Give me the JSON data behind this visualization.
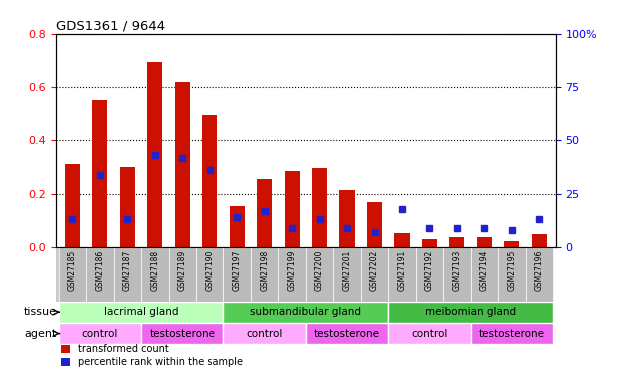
{
  "title": "GDS1361 / 9644",
  "samples": [
    "GSM27185",
    "GSM27186",
    "GSM27187",
    "GSM27188",
    "GSM27189",
    "GSM27190",
    "GSM27197",
    "GSM27198",
    "GSM27199",
    "GSM27200",
    "GSM27201",
    "GSM27202",
    "GSM27191",
    "GSM27192",
    "GSM27193",
    "GSM27194",
    "GSM27195",
    "GSM27196"
  ],
  "red_values": [
    0.31,
    0.55,
    0.3,
    0.695,
    0.62,
    0.495,
    0.155,
    0.255,
    0.285,
    0.295,
    0.215,
    0.17,
    0.055,
    0.03,
    0.04,
    0.04,
    0.025,
    0.05
  ],
  "blue_pct": [
    13,
    34,
    13,
    43,
    42,
    36,
    14,
    17,
    9,
    13,
    9,
    7,
    18,
    9,
    9,
    9,
    8,
    13
  ],
  "ylim_left": [
    0,
    0.8
  ],
  "ylim_right": [
    0,
    100
  ],
  "yticks_left": [
    0,
    0.2,
    0.4,
    0.6,
    0.8
  ],
  "yticks_right": [
    0,
    25,
    50,
    75,
    100
  ],
  "bar_color": "#cc1100",
  "dot_color": "#2222cc",
  "tissue_groups": [
    {
      "label": "lacrimal gland",
      "start": 0,
      "end": 6,
      "color": "#bbffbb"
    },
    {
      "label": "submandibular gland",
      "start": 6,
      "end": 12,
      "color": "#55cc55"
    },
    {
      "label": "meibomian gland",
      "start": 12,
      "end": 18,
      "color": "#44bb44"
    }
  ],
  "agent_groups": [
    {
      "label": "control",
      "start": 0,
      "end": 3,
      "color": "#ffaaff"
    },
    {
      "label": "testosterone",
      "start": 3,
      "end": 6,
      "color": "#ee66ee"
    },
    {
      "label": "control",
      "start": 6,
      "end": 9,
      "color": "#ffaaff"
    },
    {
      "label": "testosterone",
      "start": 9,
      "end": 12,
      "color": "#ee66ee"
    },
    {
      "label": "control",
      "start": 12,
      "end": 15,
      "color": "#ffaaff"
    },
    {
      "label": "testosterone",
      "start": 15,
      "end": 18,
      "color": "#ee66ee"
    }
  ],
  "legend_red": "transformed count",
  "legend_blue": "percentile rank within the sample",
  "tissue_label": "tissue",
  "agent_label": "agent",
  "bar_width": 0.55
}
